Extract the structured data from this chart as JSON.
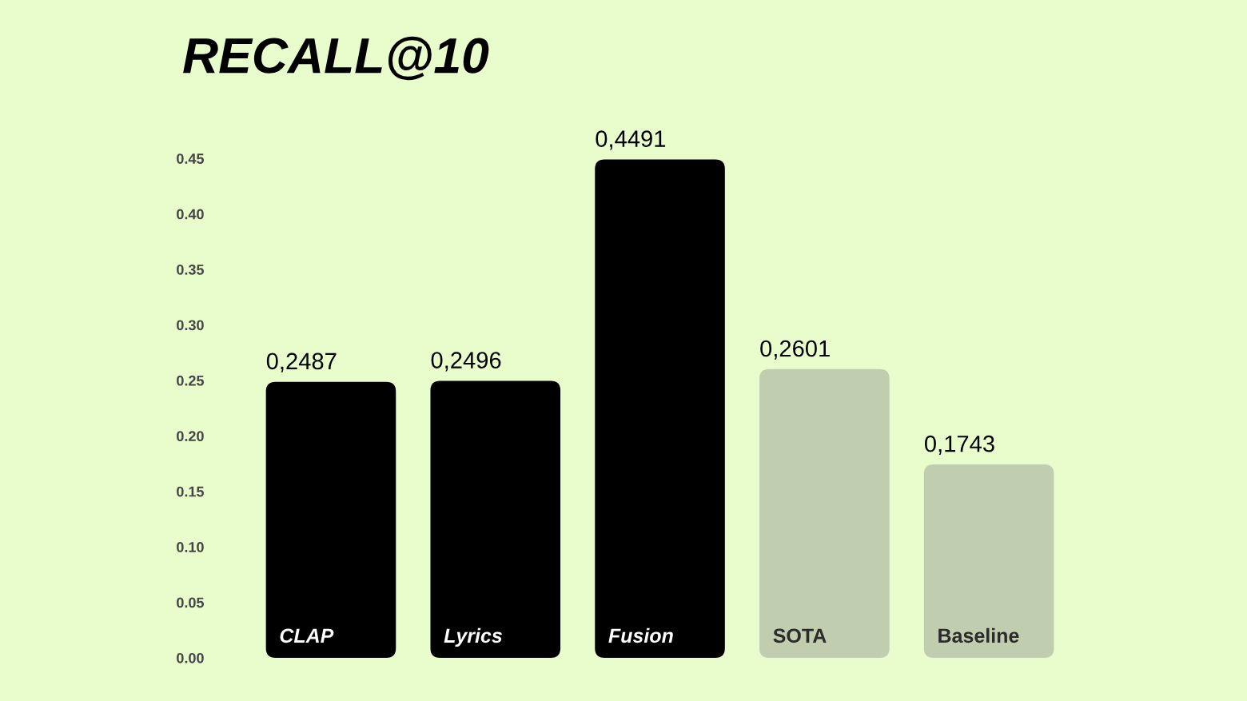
{
  "chart_data": {
    "type": "bar",
    "title": "RECALL@10",
    "categories": [
      "CLAP",
      "Lyrics",
      "Fusion",
      "SOTA",
      "Baseline"
    ],
    "values": [
      0.2487,
      0.2496,
      0.4491,
      0.2601,
      0.1743
    ],
    "colors": [
      "#000000",
      "#000000",
      "#000000",
      "#c2d2aa",
      "#c2d2aa"
    ],
    "value_labels": [
      "0,2487",
      "0,2496",
      "0,4491",
      "0,2601",
      "0,1743"
    ],
    "ylim": [
      0,
      0.45
    ],
    "yticks": [
      {
        "value": 0,
        "label": "0.00"
      },
      {
        "value": 0.05,
        "label": "0.05"
      },
      {
        "value": 0.1,
        "label": "0.10"
      },
      {
        "value": 0.15,
        "label": "0.15"
      },
      {
        "value": 0.2,
        "label": "0.20"
      },
      {
        "value": 0.25,
        "label": "0.25"
      },
      {
        "value": 0.3,
        "label": "0.30"
      },
      {
        "value": 0.35,
        "label": "0.35"
      },
      {
        "value": 0.4,
        "label": "0.40"
      },
      {
        "value": 0.45,
        "label": "0.45"
      }
    ],
    "grid": false
  }
}
